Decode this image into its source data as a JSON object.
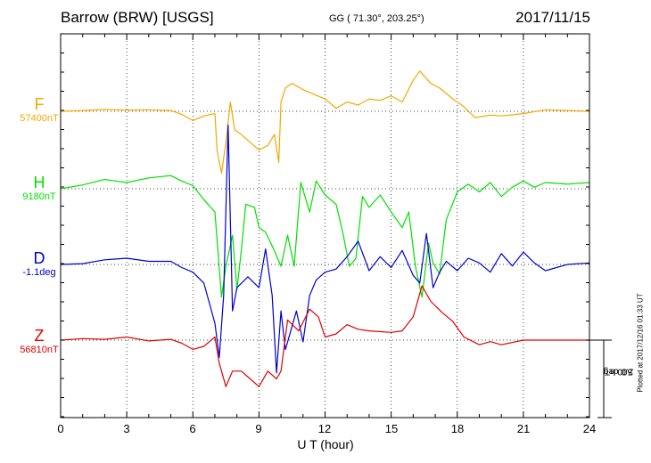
{
  "header": {
    "station": "Barrow (BRW)  [USGS]",
    "coords": "GG ( 71.30°, 203.25°)",
    "date": "2017/11/15"
  },
  "components": [
    {
      "letter": "F",
      "baseline": "57400nT",
      "color": "#f5a800"
    },
    {
      "letter": "H",
      "baseline": "9180nT",
      "color": "#00e000"
    },
    {
      "letter": "D",
      "baseline": "-1.1deg",
      "color": "#0000d0"
    },
    {
      "letter": "Z",
      "baseline": "56810nT",
      "color": "#e00000"
    }
  ],
  "x_axis": {
    "label": "U T (hour)",
    "ticks": [
      "0",
      "3",
      "6",
      "9",
      "12",
      "15",
      "18",
      "21",
      "24"
    ]
  },
  "scale_bar": {
    "line1": "500 nT",
    "line2": "2.0 deg"
  },
  "footer": {
    "plotted": "Plotted at 2017/12/16 01:33 UT"
  },
  "chart_data": {
    "type": "line",
    "title": "Barrow (BRW)  [USGS]",
    "xlabel": "U T (hour)",
    "xlim": [
      0,
      24
    ],
    "x_ticks": [
      0,
      3,
      6,
      9,
      12,
      15,
      18,
      21,
      24
    ],
    "grid": true,
    "units_note": "values are deviations from the printed baselines in nT (D in scale-equivalent units)",
    "series": [
      {
        "name": "F",
        "baseline": "57400nT",
        "color": "#f5a800",
        "points": [
          [
            0,
            0
          ],
          [
            1,
            5
          ],
          [
            2,
            12
          ],
          [
            3,
            8
          ],
          [
            4,
            10
          ],
          [
            5,
            5
          ],
          [
            5.5,
            -20
          ],
          [
            6,
            -60
          ],
          [
            6.5,
            -30
          ],
          [
            7,
            -15
          ],
          [
            7.1,
            -250
          ],
          [
            7.3,
            -400
          ],
          [
            7.5,
            -200
          ],
          [
            7.7,
            60
          ],
          [
            7.9,
            -120
          ],
          [
            8.2,
            -150
          ],
          [
            8.6,
            -200
          ],
          [
            9,
            -250
          ],
          [
            9.4,
            -220
          ],
          [
            9.7,
            -150
          ],
          [
            9.9,
            -330
          ],
          [
            10,
            60
          ],
          [
            10.2,
            150
          ],
          [
            10.5,
            180
          ],
          [
            11,
            140
          ],
          [
            11.5,
            110
          ],
          [
            12,
            80
          ],
          [
            12.5,
            20
          ],
          [
            13,
            60
          ],
          [
            13.5,
            40
          ],
          [
            14,
            80
          ],
          [
            14.5,
            70
          ],
          [
            15,
            100
          ],
          [
            15.5,
            60
          ],
          [
            16,
            200
          ],
          [
            16.3,
            260
          ],
          [
            16.8,
            180
          ],
          [
            17.2,
            150
          ],
          [
            17.8,
            80
          ],
          [
            18.3,
            30
          ],
          [
            18.8,
            -40
          ],
          [
            19.5,
            -25
          ],
          [
            20,
            -30
          ],
          [
            21,
            -15
          ],
          [
            22,
            10
          ],
          [
            23,
            5
          ],
          [
            24,
            0
          ]
        ]
      },
      {
        "name": "H",
        "baseline": "9180nT",
        "color": "#00e000",
        "points": [
          [
            0,
            0
          ],
          [
            1,
            25
          ],
          [
            2,
            60
          ],
          [
            3,
            40
          ],
          [
            4,
            70
          ],
          [
            5,
            85
          ],
          [
            5.5,
            50
          ],
          [
            6,
            20
          ],
          [
            6.5,
            -70
          ],
          [
            7,
            -150
          ],
          [
            7.3,
            -700
          ],
          [
            7.5,
            -500
          ],
          [
            7.8,
            -300
          ],
          [
            8,
            -650
          ],
          [
            8.2,
            -400
          ],
          [
            8.4,
            -100
          ],
          [
            8.8,
            -120
          ],
          [
            9,
            -250
          ],
          [
            9.3,
            -280
          ],
          [
            9.7,
            -400
          ],
          [
            10,
            -500
          ],
          [
            10.3,
            -300
          ],
          [
            10.6,
            -500
          ],
          [
            10.9,
            40
          ],
          [
            11.3,
            -150
          ],
          [
            11.6,
            50
          ],
          [
            12,
            -40
          ],
          [
            12.5,
            -100
          ],
          [
            12.8,
            -280
          ],
          [
            13.1,
            -500
          ],
          [
            13.4,
            -450
          ],
          [
            13.7,
            -50
          ],
          [
            14,
            -120
          ],
          [
            14.5,
            -40
          ],
          [
            15,
            -150
          ],
          [
            15.5,
            -250
          ],
          [
            15.8,
            -150
          ],
          [
            16.1,
            -500
          ],
          [
            16.4,
            -700
          ],
          [
            16.7,
            -350
          ],
          [
            16.9,
            -480
          ],
          [
            17.2,
            -550
          ],
          [
            17.5,
            -200
          ],
          [
            18,
            -20
          ],
          [
            18.5,
            30
          ],
          [
            19,
            -20
          ],
          [
            19.5,
            40
          ],
          [
            20,
            -50
          ],
          [
            20.5,
            10
          ],
          [
            21,
            50
          ],
          [
            21.5,
            10
          ],
          [
            22,
            40
          ],
          [
            23,
            30
          ],
          [
            24,
            40
          ]
        ]
      },
      {
        "name": "D",
        "baseline": "-1.1deg",
        "color": "#0000d0",
        "points": [
          [
            0,
            0
          ],
          [
            1,
            5
          ],
          [
            2,
            30
          ],
          [
            3,
            40
          ],
          [
            4,
            20
          ],
          [
            5,
            20
          ],
          [
            5.5,
            -20
          ],
          [
            6,
            -50
          ],
          [
            6.5,
            -120
          ],
          [
            7,
            -380
          ],
          [
            7.2,
            -600
          ],
          [
            7.4,
            -200
          ],
          [
            7.6,
            900
          ],
          [
            7.8,
            -300
          ],
          [
            8,
            -150
          ],
          [
            8.5,
            -80
          ],
          [
            9,
            -150
          ],
          [
            9.3,
            100
          ],
          [
            9.6,
            -200
          ],
          [
            9.8,
            -700
          ],
          [
            10,
            -300
          ],
          [
            10.2,
            -550
          ],
          [
            10.4,
            -450
          ],
          [
            10.7,
            -300
          ],
          [
            11,
            -500
          ],
          [
            11.3,
            -200
          ],
          [
            11.6,
            -100
          ],
          [
            12,
            -50
          ],
          [
            12.5,
            -30
          ],
          [
            13,
            50
          ],
          [
            13.5,
            150
          ],
          [
            14,
            -40
          ],
          [
            14.5,
            50
          ],
          [
            15,
            -20
          ],
          [
            15.5,
            90
          ],
          [
            16,
            -70
          ],
          [
            16.3,
            -120
          ],
          [
            16.6,
            200
          ],
          [
            16.9,
            -150
          ],
          [
            17.2,
            -50
          ],
          [
            17.5,
            20
          ],
          [
            18,
            -40
          ],
          [
            18.5,
            40
          ],
          [
            19,
            10
          ],
          [
            19.5,
            -50
          ],
          [
            20,
            70
          ],
          [
            20.5,
            -10
          ],
          [
            21,
            80
          ],
          [
            21.5,
            10
          ],
          [
            22,
            -40
          ],
          [
            23,
            0
          ],
          [
            24,
            10
          ]
        ]
      },
      {
        "name": "Z",
        "baseline": "56810nT",
        "color": "#e00000",
        "points": [
          [
            0,
            0
          ],
          [
            1,
            10
          ],
          [
            2,
            5
          ],
          [
            3,
            20
          ],
          [
            4,
            -5
          ],
          [
            5,
            5
          ],
          [
            5.5,
            -20
          ],
          [
            6,
            -60
          ],
          [
            6.5,
            -40
          ],
          [
            7,
            20
          ],
          [
            7.2,
            -150
          ],
          [
            7.5,
            -300
          ],
          [
            7.8,
            -200
          ],
          [
            8.2,
            -200
          ],
          [
            8.6,
            -250
          ],
          [
            9,
            -300
          ],
          [
            9.4,
            -200
          ],
          [
            9.8,
            -250
          ],
          [
            10,
            -200
          ],
          [
            10.3,
            130
          ],
          [
            10.8,
            60
          ],
          [
            11.3,
            200
          ],
          [
            11.7,
            150
          ],
          [
            12,
            20
          ],
          [
            12.5,
            40
          ],
          [
            13,
            100
          ],
          [
            13.5,
            70
          ],
          [
            14,
            60
          ],
          [
            15,
            50
          ],
          [
            15.5,
            60
          ],
          [
            16,
            150
          ],
          [
            16.4,
            350
          ],
          [
            16.8,
            250
          ],
          [
            17.3,
            180
          ],
          [
            17.8,
            120
          ],
          [
            18.3,
            20
          ],
          [
            19,
            -30
          ],
          [
            19.5,
            -10
          ],
          [
            20,
            -30
          ],
          [
            21,
            0
          ],
          [
            22,
            0
          ],
          [
            23,
            0
          ],
          [
            24,
            0
          ]
        ]
      }
    ]
  }
}
